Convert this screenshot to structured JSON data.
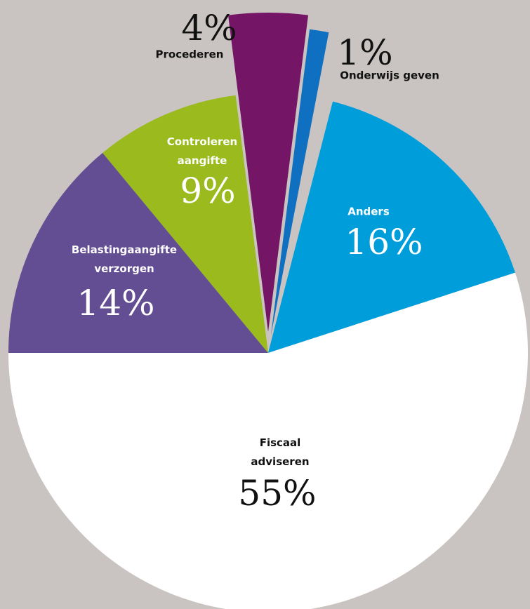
{
  "chart_data": {
    "type": "pie",
    "categories": [
      "Anders",
      "Fiscaal adviseren",
      "Belastingaangifte verzorgen",
      "Controleren aangifte",
      "Procederen",
      "Onderwijs geven"
    ],
    "values": [
      16,
      55,
      14,
      9,
      4,
      1
    ],
    "value_labels": [
      "16%",
      "55%",
      "14%",
      "9%",
      "4%",
      "1%"
    ],
    "colors": [
      "#009ddb",
      "#ffffff",
      "#634e93",
      "#9bba1e",
      "#741566",
      "#0f6fc0"
    ]
  }
}
